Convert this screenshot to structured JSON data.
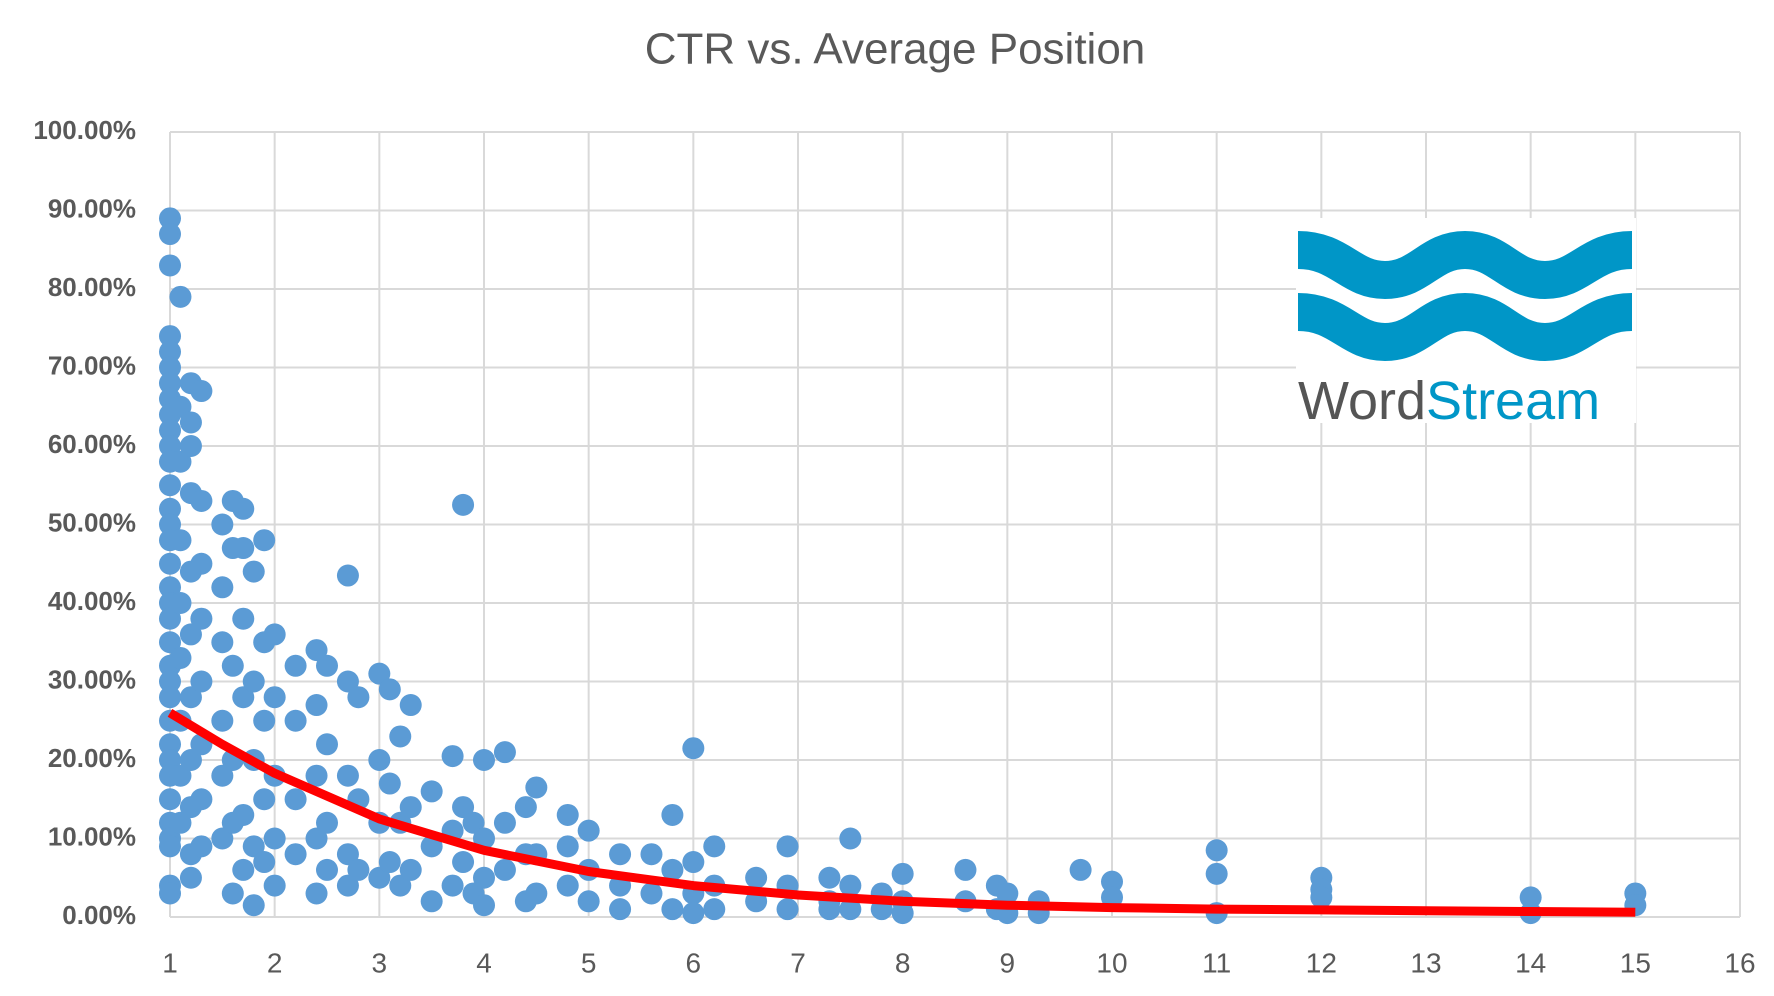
{
  "chart_data": {
    "type": "scatter",
    "title": "CTR vs. Average Position",
    "xlim": [
      1,
      16
    ],
    "xticks": [
      1,
      2,
      3,
      4,
      5,
      6,
      7,
      8,
      9,
      10,
      11,
      12,
      13,
      14,
      15,
      16
    ],
    "ylim": [
      0,
      100
    ],
    "yticks": [
      {
        "value": 0,
        "label": "0.00%"
      },
      {
        "value": 10,
        "label": "10.00%"
      },
      {
        "value": 20,
        "label": "20.00%"
      },
      {
        "value": 30,
        "label": "30.00%"
      },
      {
        "value": 40,
        "label": "40.00%"
      },
      {
        "value": 50,
        "label": "50.00%"
      },
      {
        "value": 60,
        "label": "60.00%"
      },
      {
        "value": 70,
        "label": "70.00%"
      },
      {
        "value": 80,
        "label": "80.00%"
      },
      {
        "value": 90,
        "label": "90.00%"
      },
      {
        "value": 100,
        "label": "100.00%"
      }
    ],
    "grid": true,
    "series": [
      {
        "type": "scatter",
        "color": "#5b9bd5",
        "x": [
          1,
          1,
          1,
          1,
          1,
          1,
          1,
          1,
          1,
          1,
          1,
          1,
          1,
          1,
          1,
          1,
          1,
          1,
          1,
          1,
          1,
          1,
          1,
          1,
          1,
          1,
          1,
          1,
          1,
          1,
          1,
          1,
          1,
          1,
          1.1,
          1.1,
          1.1,
          1.1,
          1.1,
          1.1,
          1.1,
          1.1,
          1.1,
          1.2,
          1.2,
          1.2,
          1.2,
          1.2,
          1.2,
          1.2,
          1.2,
          1.2,
          1.2,
          1.2,
          1.3,
          1.3,
          1.3,
          1.3,
          1.3,
          1.3,
          1.3,
          1.3,
          1.5,
          1.5,
          1.5,
          1.5,
          1.5,
          1.5,
          1.6,
          1.6,
          1.6,
          1.6,
          1.6,
          1.6,
          1.7,
          1.7,
          1.7,
          1.7,
          1.7,
          1.7,
          1.8,
          1.8,
          1.8,
          1.8,
          1.8,
          1.9,
          1.9,
          1.9,
          1.9,
          1.9,
          2,
          2,
          2,
          2,
          2,
          2.2,
          2.2,
          2.2,
          2.2,
          2.4,
          2.4,
          2.4,
          2.4,
          2.4,
          2.5,
          2.5,
          2.5,
          2.5,
          2.7,
          2.7,
          2.7,
          2.7,
          2.7,
          2.8,
          2.8,
          2.8,
          3,
          3,
          3,
          3,
          3.1,
          3.1,
          3.1,
          3.2,
          3.2,
          3.2,
          3.3,
          3.3,
          3.3,
          3.5,
          3.5,
          3.5,
          3.7,
          3.7,
          3.7,
          3.8,
          3.8,
          3.8,
          3.9,
          3.9,
          4,
          4,
          4,
          4,
          4.2,
          4.2,
          4.2,
          4.4,
          4.4,
          4.4,
          4.5,
          4.5,
          4.5,
          4.8,
          4.8,
          4.8,
          5,
          5,
          5,
          5.3,
          5.3,
          5.3,
          5.6,
          5.6,
          5.8,
          5.8,
          5.8,
          6,
          6,
          6,
          6,
          6.2,
          6.2,
          6.2,
          6.6,
          6.6,
          6.9,
          6.9,
          6.9,
          7.3,
          7.3,
          7.3,
          7.5,
          7.5,
          7.5,
          7.8,
          7.8,
          8,
          8,
          8,
          8.6,
          8.6,
          8.9,
          8.9,
          9,
          9,
          9.3,
          9.3,
          9.7,
          10,
          10,
          11,
          11,
          11,
          12,
          12,
          12,
          14,
          14,
          15,
          15
        ],
        "values": [
          89,
          87,
          83,
          74,
          72,
          70,
          68,
          66,
          64,
          62,
          60,
          58,
          55,
          52,
          50,
          48,
          45,
          42,
          40,
          38,
          35,
          32,
          30,
          28,
          25,
          22,
          20,
          18,
          15,
          12,
          10,
          9,
          4,
          3,
          79,
          65,
          58,
          48,
          40,
          33,
          25,
          18,
          12,
          68,
          63,
          60,
          54,
          44,
          36,
          28,
          20,
          14,
          8,
          5,
          67,
          53,
          45,
          38,
          30,
          22,
          15,
          9,
          50,
          42,
          35,
          25,
          18,
          10,
          53,
          47,
          32,
          20,
          12,
          3,
          52,
          47,
          38,
          28,
          13,
          6,
          44,
          30,
          20,
          9,
          1.5,
          48,
          35,
          25,
          15,
          7,
          36,
          28,
          18,
          10,
          4,
          32,
          25,
          15,
          8,
          34,
          27,
          18,
          10,
          3,
          32,
          22,
          12,
          6,
          43.5,
          30,
          18,
          8,
          4,
          28,
          15,
          6,
          31,
          20,
          12,
          5,
          29,
          17,
          7,
          23,
          12,
          4,
          27,
          14,
          6,
          16,
          9,
          2,
          20.5,
          11,
          4,
          52.5,
          14,
          7,
          12,
          3,
          20,
          10,
          5,
          1.5,
          21,
          12,
          6,
          14,
          8,
          2,
          16.5,
          8,
          3,
          13,
          9,
          4,
          11,
          6,
          2,
          8,
          4,
          1,
          8,
          3,
          13,
          6,
          1,
          21.5,
          7,
          3,
          0.5,
          9,
          4,
          1,
          5,
          2,
          9,
          4,
          1,
          5,
          2,
          1,
          10,
          4,
          1,
          3,
          1,
          5.5,
          2,
          0.5,
          6,
          2,
          4,
          1,
          3,
          0.5,
          2,
          0.5,
          6,
          4.5,
          2.5,
          8.5,
          5.5,
          0.5,
          5,
          3.5,
          2.5,
          2.5,
          0.5,
          3,
          1.5
        ]
      },
      {
        "type": "line",
        "color": "#ff0000",
        "x": [
          1,
          1.5,
          2,
          3,
          4,
          5,
          6,
          7,
          8,
          9,
          10,
          11,
          12,
          13,
          14,
          15
        ],
        "values": [
          26,
          22,
          18.3,
          12.5,
          8.5,
          5.8,
          4,
          2.8,
          2,
          1.5,
          1.2,
          1,
          0.9,
          0.8,
          0.7,
          0.6
        ]
      }
    ]
  },
  "logo": [
    "Word",
    "Stream"
  ]
}
